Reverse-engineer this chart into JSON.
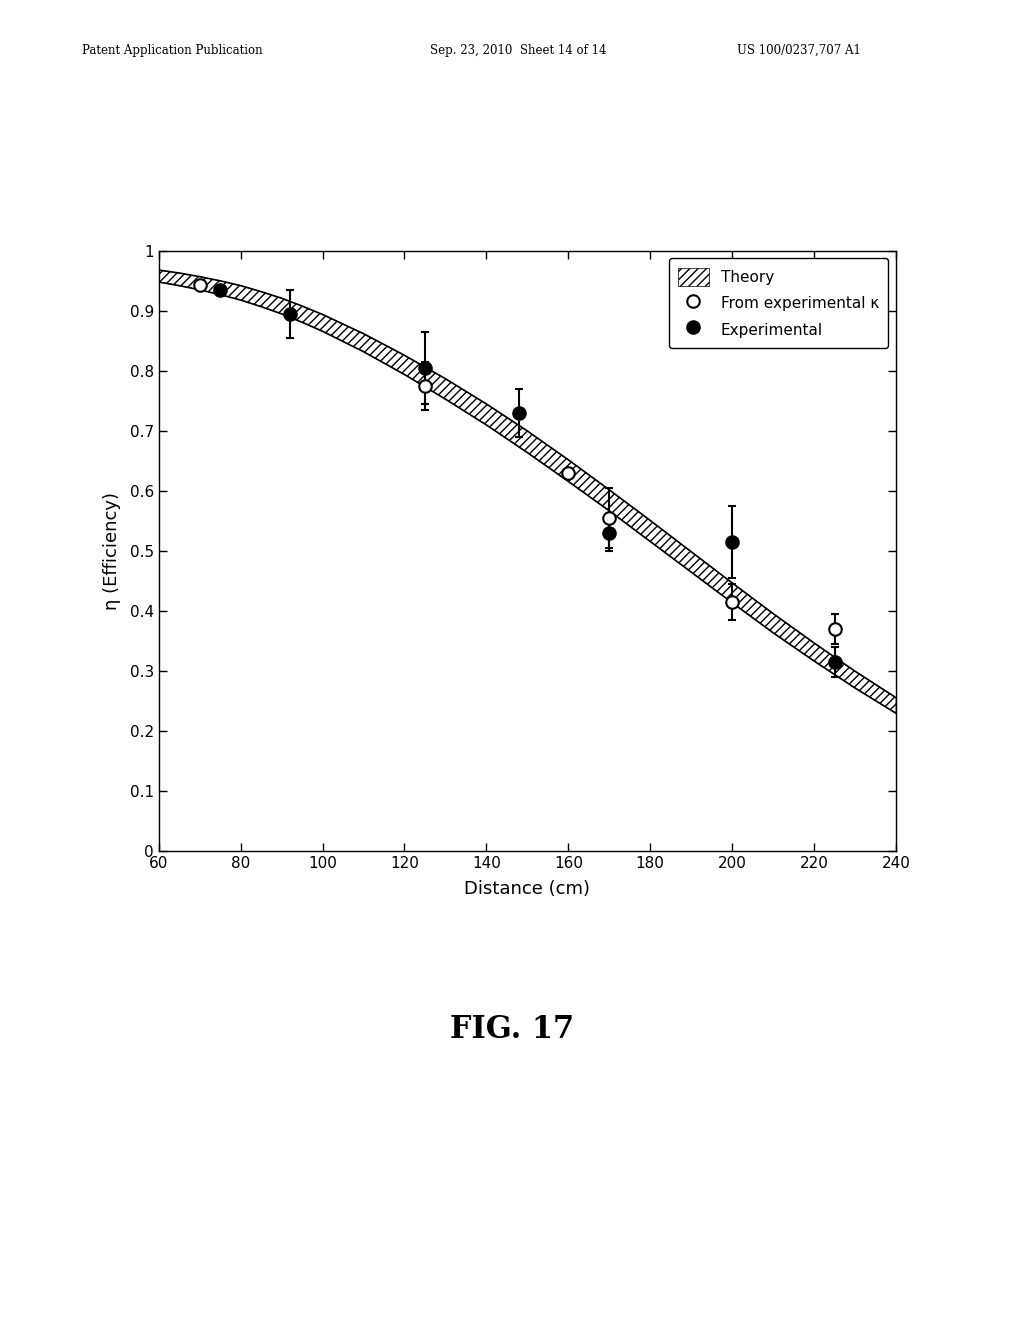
{
  "title": "FIG. 17",
  "xlabel": "Distance (cm)",
  "ylabel": "η (Efficiency)",
  "xlim": [
    60,
    240
  ],
  "ylim": [
    0,
    1
  ],
  "xticks": [
    60,
    80,
    100,
    120,
    140,
    160,
    180,
    200,
    220,
    240
  ],
  "yticks": [
    0,
    0.1,
    0.2,
    0.3,
    0.4,
    0.5,
    0.6,
    0.7,
    0.8,
    0.9,
    1
  ],
  "open_circles_x": [
    70,
    125,
    160,
    170,
    200,
    225
  ],
  "open_circles_y": [
    0.943,
    0.775,
    0.63,
    0.555,
    0.415,
    0.37
  ],
  "open_circles_yerr": [
    0.0,
    0.04,
    0.0,
    0.05,
    0.03,
    0.025
  ],
  "filled_circles_x": [
    75,
    92,
    125,
    148,
    170,
    200,
    225
  ],
  "filled_circles_y": [
    0.935,
    0.895,
    0.805,
    0.73,
    0.53,
    0.515,
    0.315
  ],
  "filled_circles_yerr": [
    0.0,
    0.04,
    0.06,
    0.04,
    0.03,
    0.06,
    0.025
  ],
  "theory_upper_x": [
    60,
    65,
    70,
    75,
    80,
    85,
    90,
    95,
    100,
    110,
    120,
    130,
    140,
    150,
    160,
    170,
    180,
    190,
    200,
    210,
    220,
    230,
    240
  ],
  "theory_upper_y": [
    0.968,
    0.963,
    0.957,
    0.95,
    0.942,
    0.932,
    0.921,
    0.908,
    0.894,
    0.862,
    0.826,
    0.787,
    0.745,
    0.7,
    0.652,
    0.602,
    0.551,
    0.499,
    0.447,
    0.396,
    0.347,
    0.3,
    0.256
  ],
  "theory_lower_y": [
    0.948,
    0.942,
    0.935,
    0.927,
    0.918,
    0.907,
    0.895,
    0.881,
    0.866,
    0.832,
    0.794,
    0.753,
    0.71,
    0.664,
    0.616,
    0.567,
    0.516,
    0.465,
    0.414,
    0.364,
    0.317,
    0.272,
    0.23
  ],
  "header_left": "Patent Application Publication",
  "header_mid": "Sep. 23, 2010  Sheet 14 of 14",
  "header_right": "US 100/0237,707 A1",
  "background_color": "#ffffff"
}
